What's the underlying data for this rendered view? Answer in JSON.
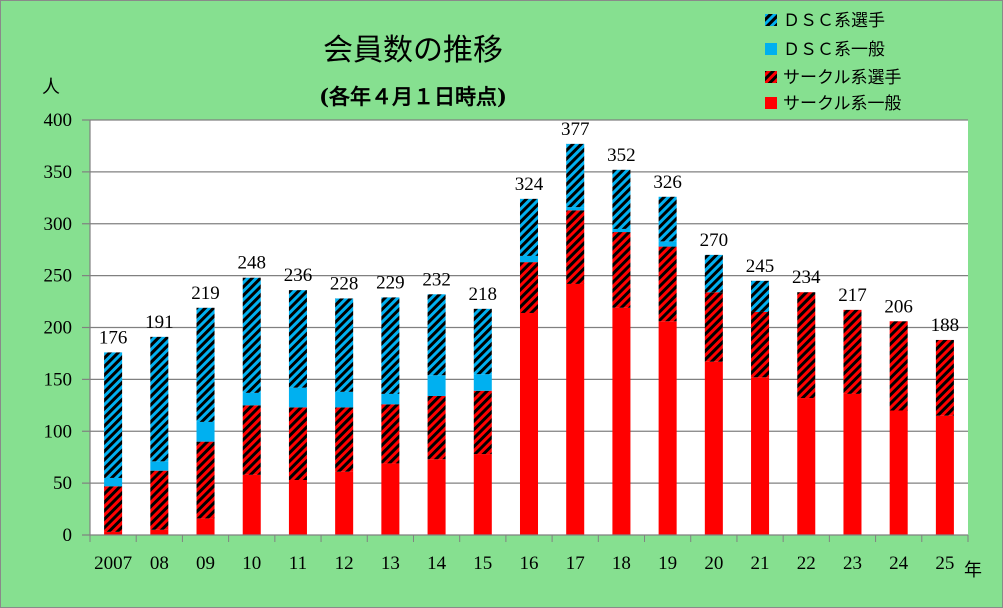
{
  "chart_data": {
    "type": "bar",
    "stacked": true,
    "title": "会員数の推移",
    "subtitle": "(各年４月１日時点)",
    "ylabel": "人",
    "xlabel": "年",
    "ylim": [
      0,
      400
    ],
    "ytick_step": 50,
    "yticks": [
      "0",
      "50",
      "100",
      "150",
      "200",
      "250",
      "300",
      "350",
      "400"
    ],
    "grid": true,
    "legend_position": "top-right",
    "categories": [
      "2007",
      "08",
      "09",
      "10",
      "11",
      "12",
      "13",
      "14",
      "15",
      "16",
      "17",
      "18",
      "19",
      "20",
      "21",
      "22",
      "23",
      "24",
      "25"
    ],
    "totals": [
      176,
      191,
      219,
      248,
      236,
      228,
      229,
      232,
      218,
      324,
      377,
      352,
      326,
      270,
      245,
      234,
      217,
      206,
      188
    ],
    "total_labels": [
      "176",
      "191",
      "219",
      "248",
      "236",
      "228",
      "229",
      "232",
      "218",
      "324",
      "377",
      "352",
      "326",
      "270",
      "245",
      "234",
      "217",
      "206",
      "188"
    ],
    "series": [
      {
        "name": "サークル系一般",
        "color": "#FF0000",
        "pattern": "solid",
        "values": [
          3,
          5,
          16,
          58,
          53,
          61,
          69,
          73,
          78,
          214,
          242,
          219,
          206,
          167,
          152,
          132,
          136,
          120,
          115
        ]
      },
      {
        "name": "サークル系選手",
        "color": "#FF0000",
        "pattern": "hatched",
        "values": [
          44,
          57,
          74,
          67,
          70,
          62,
          57,
          61,
          61,
          49,
          71,
          73,
          72,
          67,
          63,
          102,
          81,
          86,
          73
        ]
      },
      {
        "name": "ＤＳＣ系一般",
        "color": "#00B0F0",
        "pattern": "solid",
        "values": [
          8,
          9,
          19,
          12,
          19,
          15,
          10,
          20,
          16,
          6,
          3,
          3,
          5,
          0,
          0,
          0,
          0,
          0,
          0
        ]
      },
      {
        "name": "ＤＳＣ系選手",
        "color": "#00B0F0",
        "pattern": "hatched",
        "values": [
          121,
          120,
          110,
          111,
          94,
          90,
          93,
          78,
          63,
          55,
          61,
          57,
          43,
          36,
          30,
          0,
          0,
          0,
          0
        ]
      }
    ],
    "legend": [
      "ＤＳＣ系選手",
      "ＤＳＣ系一般",
      "サークル系選手",
      "サークル系一般"
    ],
    "colors": {
      "background": "#86E090",
      "plot": "#FFFFFF",
      "grid": "#808080",
      "hatch": "#000000"
    }
  }
}
